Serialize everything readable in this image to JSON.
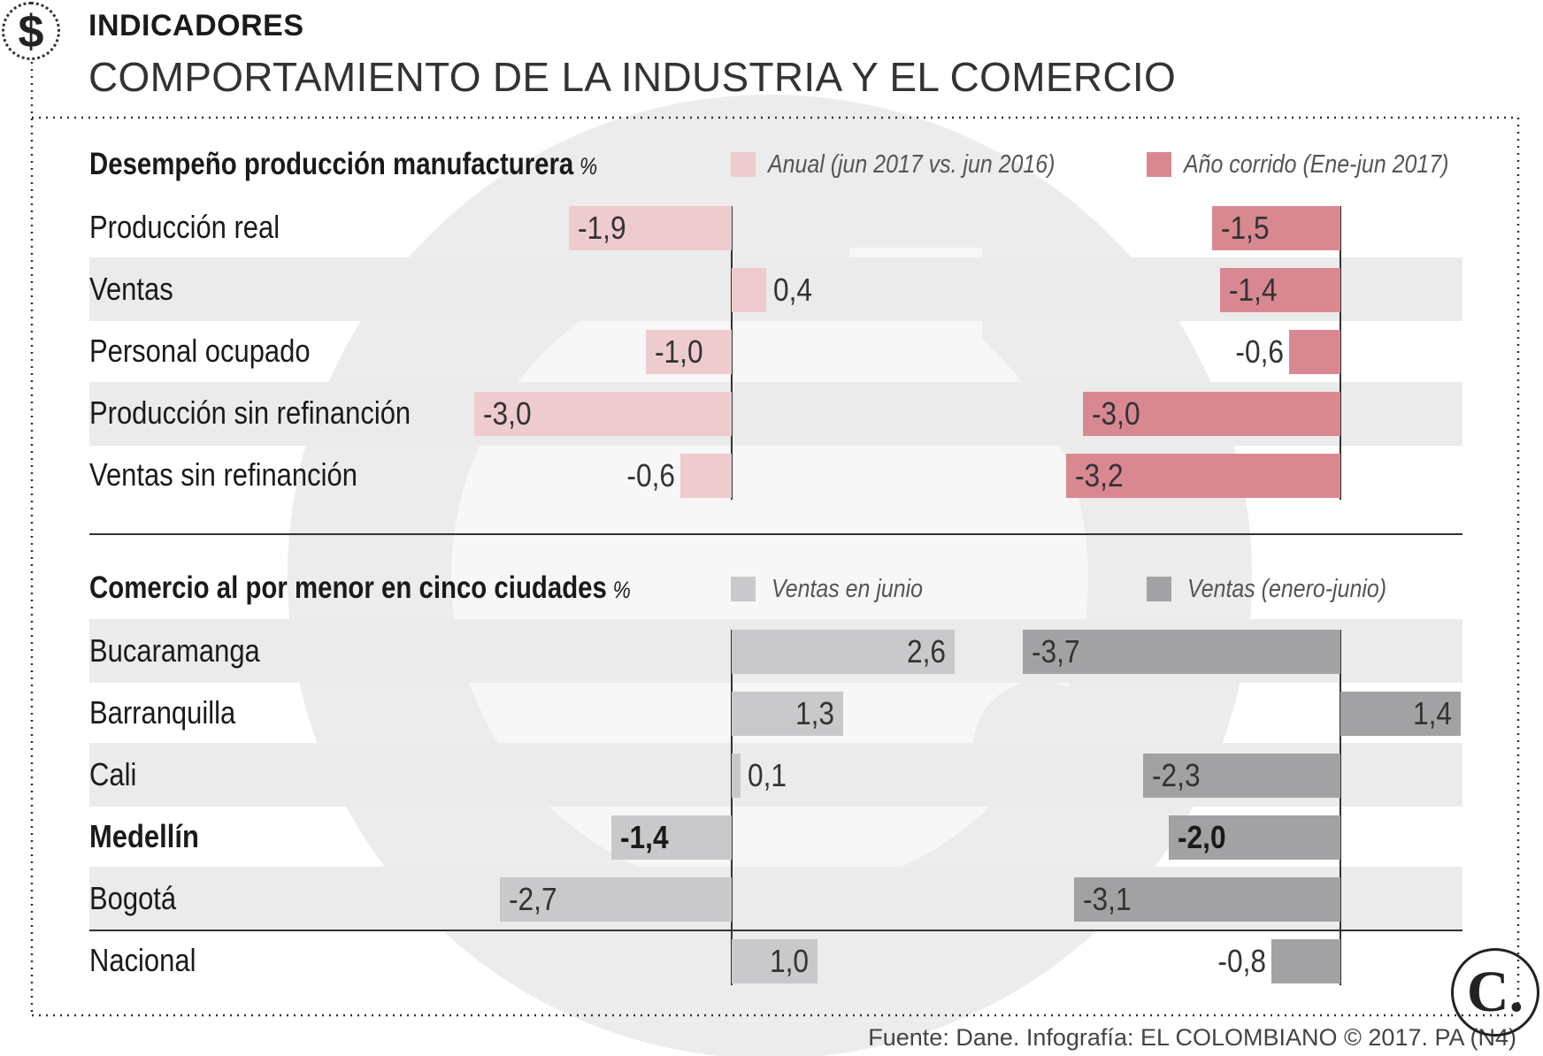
{
  "header": {
    "kicker": "INDICADORES",
    "title": "COMPORTAMIENTO DE LA INDUSTRIA Y EL COMERCIO",
    "icon": "dollar-icon"
  },
  "footer": {
    "source": "Fuente: Dane. Infografía: EL COLOMBIANO © 2017. PA (N4)",
    "logo_letter": "C."
  },
  "colors": {
    "pink_light": "#eecbcf",
    "pink_dark": "#d98891",
    "gray_light": "#c9c9cc",
    "gray_dark": "#a2a2a4",
    "band": "#ebebeb",
    "axis": "#333333"
  },
  "chart_data": [
    {
      "type": "bar",
      "orientation": "horizontal",
      "title": "Desempeño producción manufacturera",
      "unit": "%",
      "categories": [
        "Producción real",
        "Ventas",
        "Personal ocupado",
        "Producción sin refinanción",
        "Ventas sin refinanción"
      ],
      "series": [
        {
          "name": "Anual (jun 2017 vs. jun 2016)",
          "values": [
            -1.9,
            0.4,
            -1.0,
            -3.0,
            -0.6
          ],
          "labels": [
            "-1,9",
            "0,4",
            "-1,0",
            "-3,0",
            "-0,6"
          ]
        },
        {
          "name": "Año corrido (Ene-jun 2017)",
          "values": [
            -1.5,
            -1.4,
            -0.6,
            -3.0,
            -3.2
          ],
          "labels": [
            "-1,5",
            "-1,4",
            "-0,6",
            "-3,0",
            "-3,2"
          ]
        }
      ]
    },
    {
      "type": "bar",
      "orientation": "horizontal",
      "title": "Comercio al por menor en cinco ciudades",
      "unit": "%",
      "categories": [
        "Bucaramanga",
        "Barranquilla",
        "Cali",
        "Medellín",
        "Bogotá",
        "Nacional"
      ],
      "highlight": [
        false,
        false,
        false,
        true,
        false,
        false
      ],
      "series": [
        {
          "name": "Ventas en junio",
          "values": [
            2.6,
            1.3,
            0.1,
            -1.4,
            -2.7,
            1.0
          ],
          "labels": [
            "2,6",
            "1,3",
            "0,1",
            "-1,4",
            "-2,7",
            "1,0"
          ]
        },
        {
          "name": "Ventas (enero-junio)",
          "values": [
            -3.7,
            1.4,
            -2.3,
            -2.0,
            -3.1,
            -0.8
          ],
          "labels": [
            "-3,7",
            "1,4",
            "-2,3",
            "-2,0",
            "-3,1",
            "-0,8"
          ]
        }
      ]
    }
  ]
}
